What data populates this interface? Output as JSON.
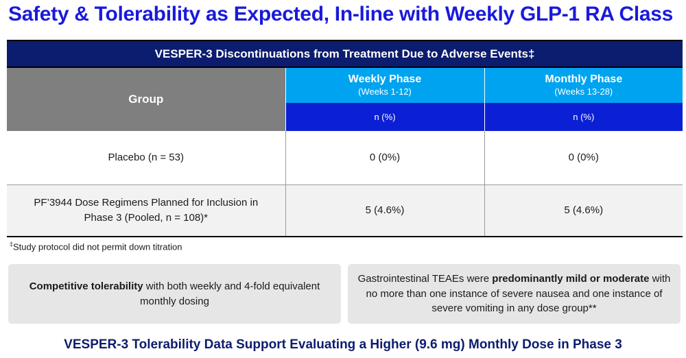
{
  "title": "Safety & Tolerability as Expected, In-line with Weekly GLP-1 RA Class",
  "table": {
    "caption": "VESPER-3 Discontinuations from Treatment Due to Adverse Events‡",
    "group_header": "Group",
    "phases": [
      {
        "name": "Weekly Phase",
        "weeks": "(Weeks 1-12)",
        "unit": "n (%)"
      },
      {
        "name": "Monthly Phase",
        "weeks": "(Weeks 13-28)",
        "unit": "n (%)"
      }
    ],
    "rows": [
      {
        "group_lines": [
          "Placebo (n = 53)"
        ],
        "weekly": "0 (0%)",
        "monthly": "0 (0%)"
      },
      {
        "group_lines": [
          "PF’3944 Dose Regimens Planned for Inclusion in",
          "Phase 3 (Pooled, n = 108)*"
        ],
        "weekly": "5 (4.6%)",
        "monthly": "5 (4.6%)"
      }
    ]
  },
  "footnote": {
    "mark": "‡",
    "text": "Study protocol did not permit down titration"
  },
  "callouts": {
    "left": {
      "bold": "Competitive tolerability",
      "after_bold": " with both weekly and 4-fold equivalent monthly dosing"
    },
    "right": {
      "before_bold": "Gastrointestinal TEAEs were ",
      "bold": "predominantly mild or moderate",
      "after_bold": " with no more than one instance of severe nausea and one instance of severe vomiting in any dose group**"
    }
  },
  "bottom_line": "VESPER-3 Tolerability Data Support Evaluating a Higher (9.6 mg) Monthly Dose in Phase 3",
  "colors": {
    "title": "#1a1adb",
    "caption_bg": "#0c1c6e",
    "group_header_bg": "#7f7f7f",
    "phase_header_bg": "#00a3f0",
    "unit_header_bg": "#0b1fd4",
    "callout_bg": "#e6e6e6"
  }
}
